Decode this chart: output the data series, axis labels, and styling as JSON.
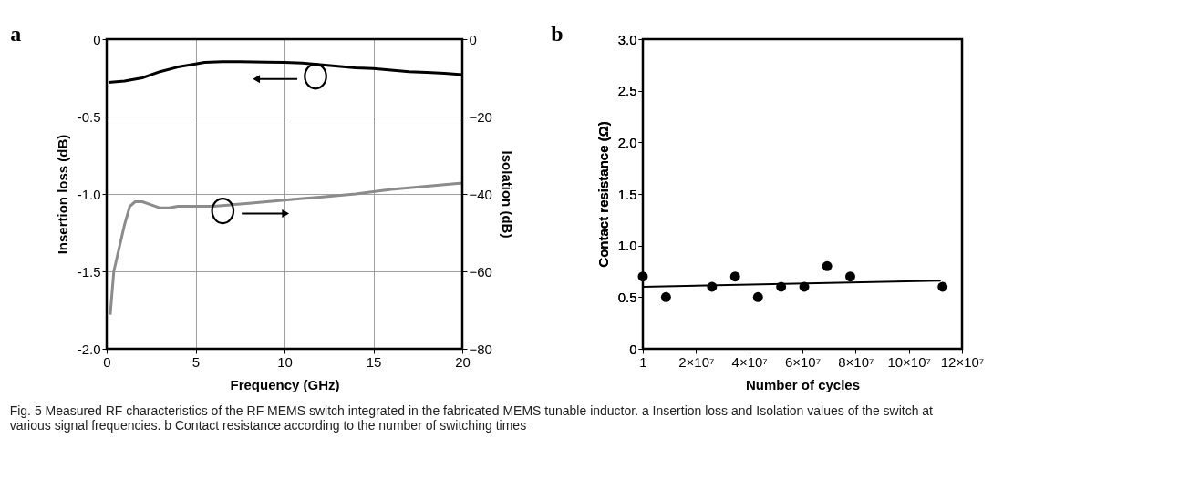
{
  "chart_data": [
    {
      "type": "line",
      "title": "a",
      "xlabel": "Frequency (GHz)",
      "ylabel": "Insertion loss (dB)",
      "y2label": "Isolation (dB)",
      "xlim": [
        0,
        20
      ],
      "xticks": [
        0,
        5,
        10,
        15,
        20
      ],
      "ylim": [
        -2,
        0
      ],
      "yticks": [
        {
          "value": -2,
          "label": "-2.0"
        },
        {
          "value": -1.5,
          "label": "-1.5"
        },
        {
          "value": -1,
          "label": "-1.0"
        },
        {
          "value": -0.5,
          "label": "-0.5"
        },
        {
          "value": 0,
          "label": "0"
        }
      ],
      "y2lim": [
        -80,
        0
      ],
      "y2ticks": [
        -80,
        -60,
        -40,
        -20,
        0
      ],
      "grid": true,
      "marker": "none",
      "line_style": "solid",
      "series": [
        {
          "color": "#000000",
          "x": [
            0.1,
            1,
            2,
            3,
            4,
            5,
            5.5,
            6.5,
            7.5,
            9,
            10,
            11,
            12,
            13,
            14,
            15,
            16,
            17,
            18,
            19,
            20
          ],
          "values": [
            -0.28,
            -0.27,
            -0.25,
            -0.21,
            -0.18,
            -0.16,
            -0.15,
            -0.145,
            -0.145,
            -0.148,
            -0.15,
            -0.155,
            -0.165,
            -0.175,
            -0.185,
            -0.19,
            -0.2,
            -0.21,
            -0.215,
            -0.22,
            -0.23
          ]
        },
        {
          "color": "#8c8c8c",
          "axis": "y2",
          "x": [
            0.2,
            0.4,
            0.7,
            1,
            1.3,
            1.6,
            2,
            2.5,
            3,
            3.5,
            4,
            5,
            6,
            7,
            8,
            9,
            10,
            11,
            12,
            13,
            14,
            15,
            16,
            17,
            18,
            19,
            20
          ],
          "values": [
            -71.2,
            -60,
            -54,
            -48,
            -43.2,
            -42,
            -42,
            -42.8,
            -43.6,
            -43.6,
            -43.2,
            -43.2,
            -43.2,
            -42.8,
            -42.4,
            -42,
            -41.6,
            -41.2,
            -40.8,
            -40.4,
            -40,
            -39.4,
            -38.8,
            -38.4,
            -38,
            -37.6,
            -37.2
          ]
        }
      ],
      "annotations": [
        "Fig. 5  Measured RF characteristics of the RF MEMS switch integrated in the fabricated MEMS tunable inductor. a Insertion loss and Isolation values of the switch at various signal frequencies. b Contact resistance according to the number of switching times"
      ]
    },
    {
      "type": "scatter",
      "title": "b",
      "xlabel": "Number of cycles",
      "ylabel": "Contact resistance (Ω)",
      "xlim": [
        1,
        120000000
      ],
      "xticks": [
        1,
        {
          "value": 20000000,
          "label": "2×10⁷"
        },
        {
          "value": 40000000,
          "label": "4×10⁷"
        },
        {
          "value": 60000000,
          "label": "6×10⁷"
        },
        {
          "value": 80000000,
          "label": "8×10⁷"
        },
        {
          "value": 100000000,
          "label": "10×10⁷"
        },
        {
          "value": 120000000,
          "label": "12×10⁷"
        }
      ],
      "ylim": [
        0,
        3
      ],
      "yticks": [
        {
          "value": 0,
          "label": "0"
        },
        0.5,
        {
          "value": 1,
          "label": "1.0"
        },
        1.5,
        {
          "value": 2,
          "label": "2.0"
        },
        2.5,
        {
          "value": 3,
          "label": "3.0"
        }
      ],
      "grid": false,
      "marker": "circle",
      "x": [
        1,
        8700000,
        26000000,
        34700000,
        43300000,
        52000000,
        60700000,
        69300000,
        78000000,
        112700000
      ],
      "series": [
        {
          "color": "#000000",
          "values": [
            0.7,
            0.5,
            0.6,
            0.7,
            0.5,
            0.6,
            0.6,
            0.8,
            0.7,
            0.6
          ]
        },
        {
          "type": "line",
          "color": "#000000",
          "marker": "none",
          "line_style": "solid",
          "x": [
            1,
            112000000
          ],
          "values": [
            0.6,
            0.66
          ]
        }
      ]
    }
  ]
}
